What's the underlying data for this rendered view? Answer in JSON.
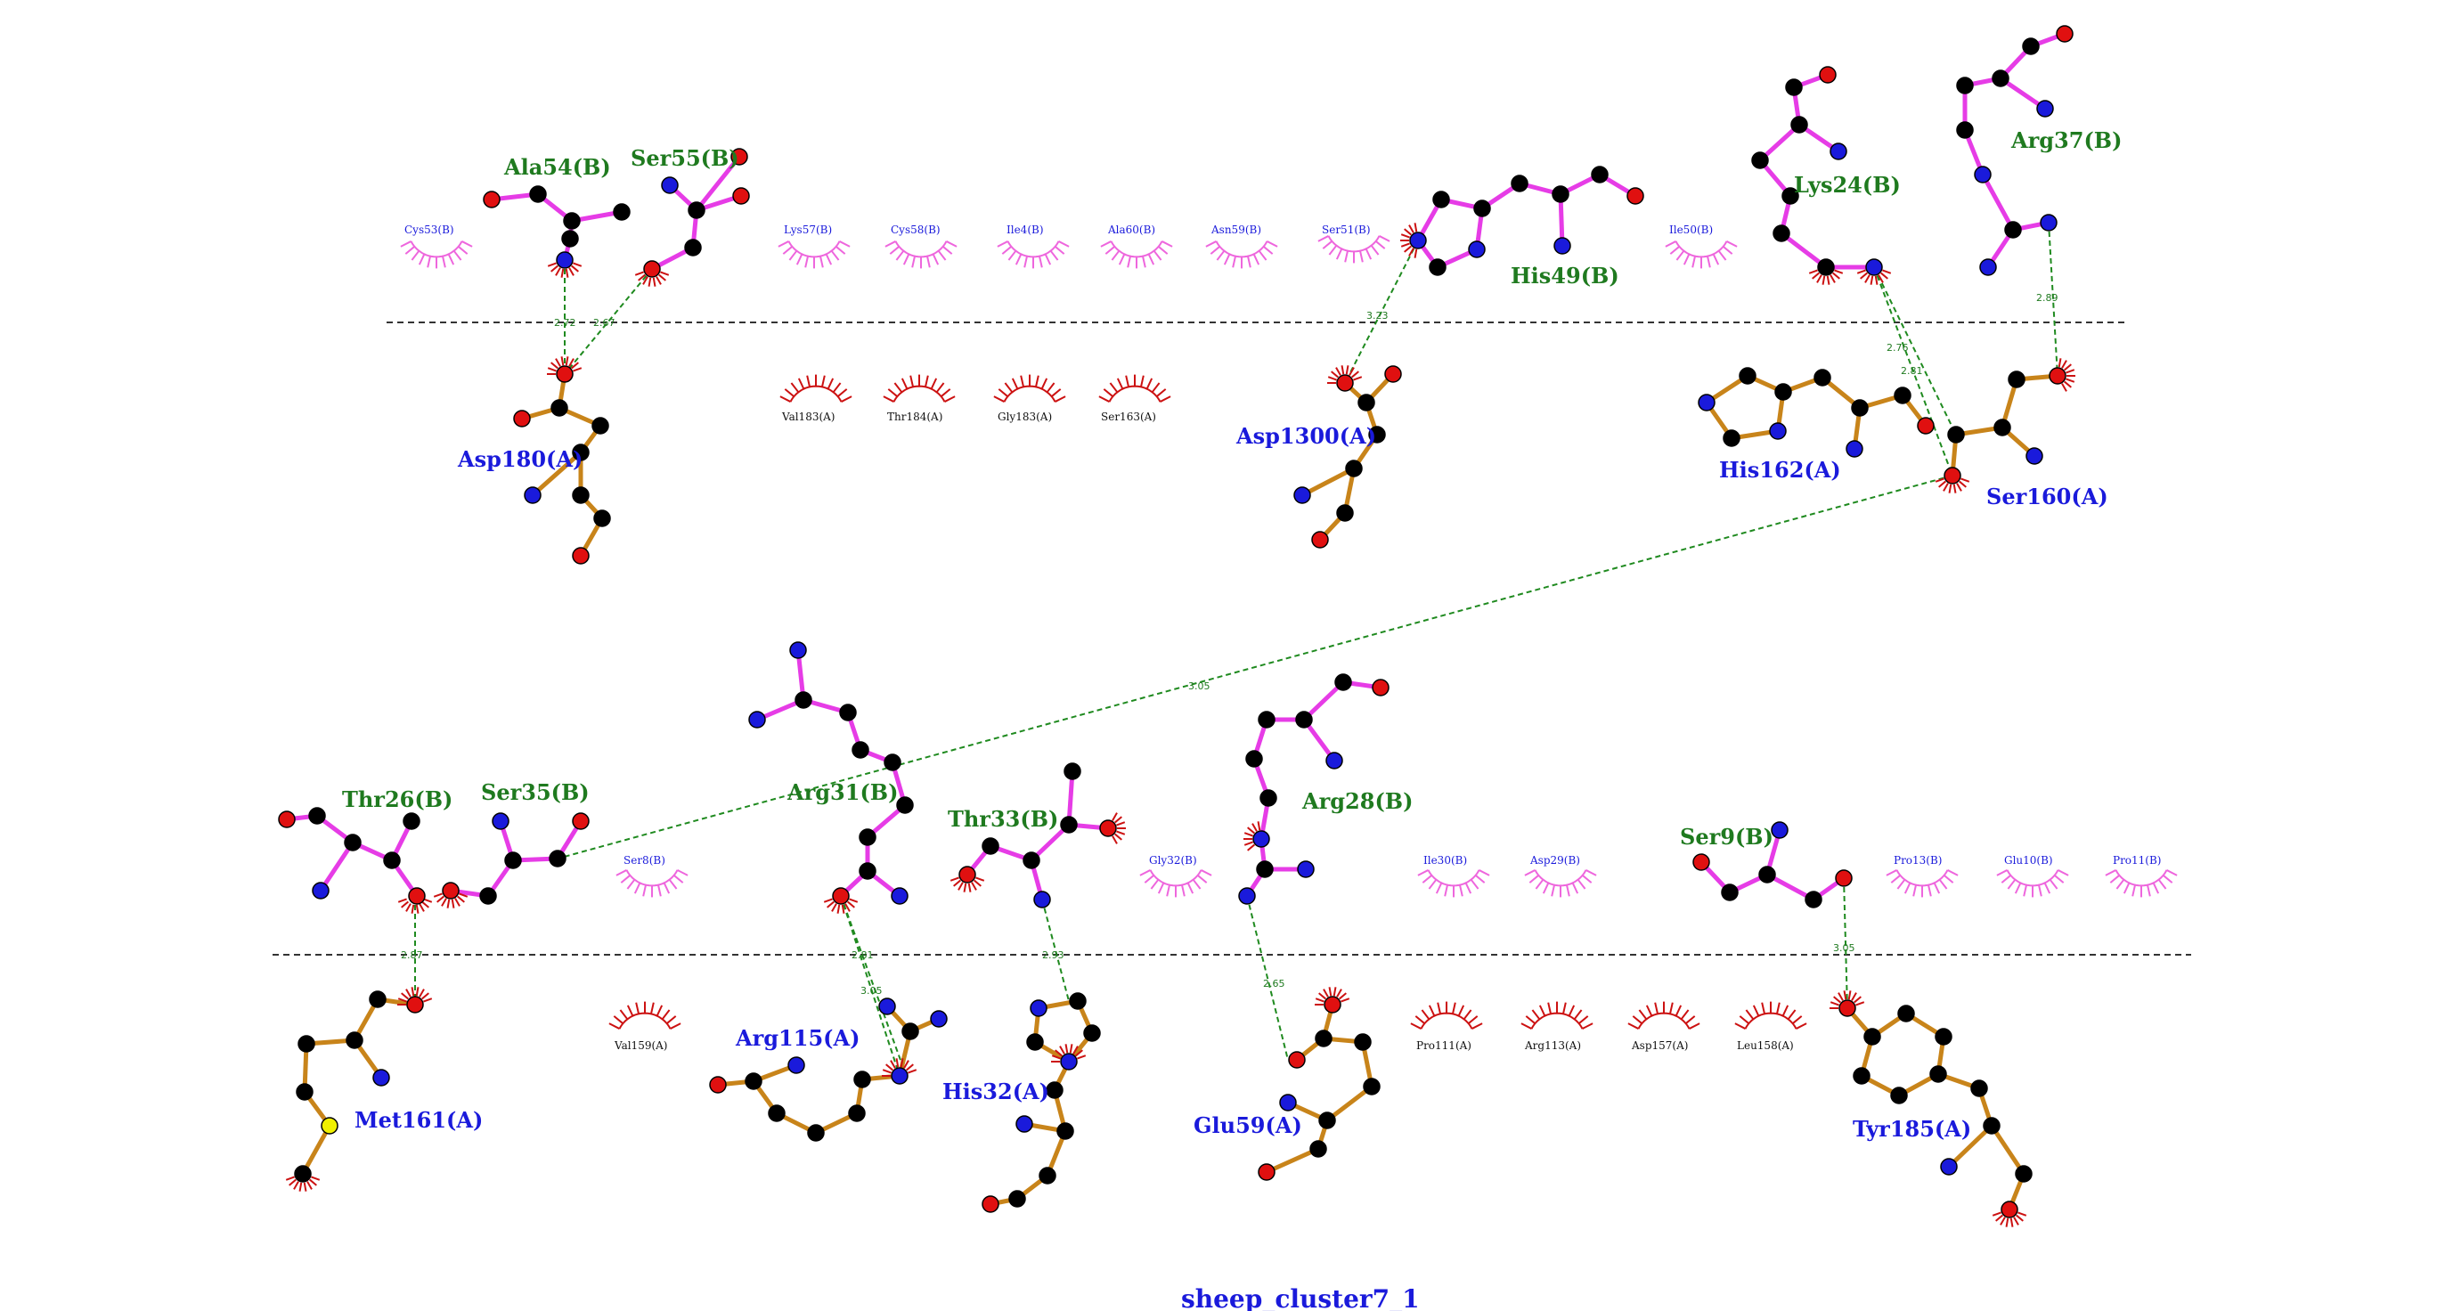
{
  "title": "sheep_cluster7_1",
  "colors": {
    "chain_a_bond": "#c8841a",
    "chain_b_bond": "#e63ce6",
    "hbond": "#1f8a1f",
    "carbon": "#000000",
    "nitrogen": "#1a1adb",
    "oxygen": "#e01010",
    "sulfur": "#f0f000",
    "hydrophobic_a": "#cc1111",
    "hydrophobic_b": "#ee66dd"
  },
  "residue_labels": [
    {
      "id": "ala54b",
      "text": "Ala54(B)",
      "chain": "B"
    },
    {
      "id": "ser55b",
      "text": "Ser55(B)",
      "chain": "B"
    },
    {
      "id": "his49b",
      "text": "His49(B)",
      "chain": "B"
    },
    {
      "id": "lys24b",
      "text": "Lys24(B)",
      "chain": "B"
    },
    {
      "id": "arg37b",
      "text": "Arg37(B)",
      "chain": "B"
    },
    {
      "id": "asp180a",
      "text": "Asp180(A)",
      "chain": "A"
    },
    {
      "id": "asp1300a",
      "text": "Asp1300(A)",
      "chain": "A"
    },
    {
      "id": "his162a",
      "text": "His162(A)",
      "chain": "A"
    },
    {
      "id": "ser160a",
      "text": "Ser160(A)",
      "chain": "A"
    },
    {
      "id": "thr26b",
      "text": "Thr26(B)",
      "chain": "B"
    },
    {
      "id": "ser35b",
      "text": "Ser35(B)",
      "chain": "B"
    },
    {
      "id": "arg31b",
      "text": "Arg31(B)",
      "chain": "B"
    },
    {
      "id": "thr33b",
      "text": "Thr33(B)",
      "chain": "B"
    },
    {
      "id": "arg28b",
      "text": "Arg28(B)",
      "chain": "B"
    },
    {
      "id": "ser9b",
      "text": "Ser9(B)",
      "chain": "B"
    },
    {
      "id": "met161a",
      "text": "Met161(A)",
      "chain": "A"
    },
    {
      "id": "arg115a",
      "text": "Arg115(A)",
      "chain": "A"
    },
    {
      "id": "his32a",
      "text": "His32(A)",
      "chain": "A"
    },
    {
      "id": "glu59a",
      "text": "Glu59(A)",
      "chain": "A"
    },
    {
      "id": "tyr185a",
      "text": "Tyr185(A)",
      "chain": "A"
    }
  ],
  "hydrophobic_contacts": [
    {
      "text": "Cys53(B)",
      "chain": "B"
    },
    {
      "text": "Lys57(B)",
      "chain": "B"
    },
    {
      "text": "Cys58(B)",
      "chain": "B"
    },
    {
      "text": "Ile4(B)",
      "chain": "B"
    },
    {
      "text": "Ala60(B)",
      "chain": "B"
    },
    {
      "text": "Asn59(B)",
      "chain": "B"
    },
    {
      "text": "Ser51(B)",
      "chain": "B"
    },
    {
      "text": "Ile50(B)",
      "chain": "B"
    },
    {
      "text": "Val183(A)",
      "chain": "A"
    },
    {
      "text": "Thr184(A)",
      "chain": "A"
    },
    {
      "text": "Gly183(A)",
      "chain": "A"
    },
    {
      "text": "Ser163(A)",
      "chain": "A"
    },
    {
      "text": "Ser8(B)",
      "chain": "B"
    },
    {
      "text": "Gly32(B)",
      "chain": "B"
    },
    {
      "text": "Ile30(B)",
      "chain": "B"
    },
    {
      "text": "Asp29(B)",
      "chain": "B"
    },
    {
      "text": "Pro13(B)",
      "chain": "B"
    },
    {
      "text": "Glu10(B)",
      "chain": "B"
    },
    {
      "text": "Pro11(B)",
      "chain": "B"
    },
    {
      "text": "Val159(A)",
      "chain": "A"
    },
    {
      "text": "Pro111(A)",
      "chain": "A"
    },
    {
      "text": "Arg113(A)",
      "chain": "A"
    },
    {
      "text": "Asp157(A)",
      "chain": "A"
    },
    {
      "text": "Leu158(A)",
      "chain": "A"
    }
  ],
  "hbonds": [
    {
      "d": "2.72"
    },
    {
      "d": "2.67"
    },
    {
      "d": "3.23"
    },
    {
      "d": "2.76"
    },
    {
      "d": "2.81"
    },
    {
      "d": "2.89"
    },
    {
      "d": "3.05"
    },
    {
      "d": "2.87"
    },
    {
      "d": "2.81"
    },
    {
      "d": "3.05"
    },
    {
      "d": "2.93"
    },
    {
      "d": "2.65"
    },
    {
      "d": "3.05"
    }
  ]
}
